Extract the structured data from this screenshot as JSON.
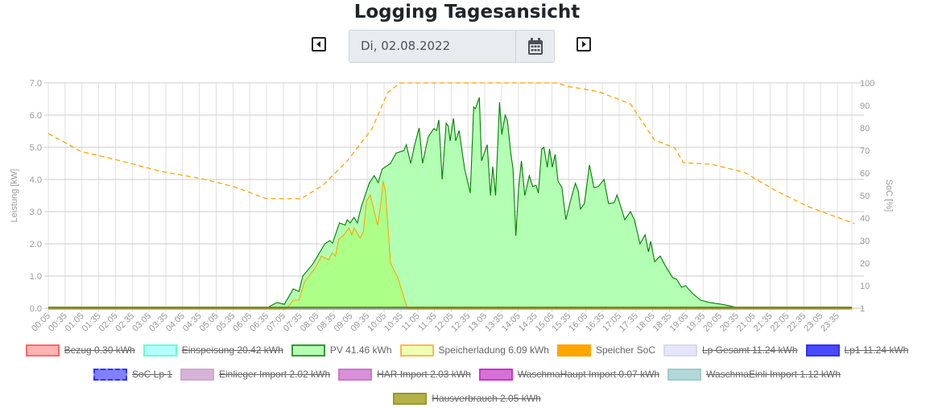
{
  "header": {
    "title": "Logging Tagesansicht",
    "date": "Di, 02.08.2022",
    "prev_icon": "caret-left-square-icon",
    "next_icon": "caret-right-square-icon",
    "calendar_icon": "calendar-icon"
  },
  "chart_data": {
    "type": "area",
    "xlabel": "",
    "ylabel": "Leistung [kW]",
    "y2label": "SoC [%]",
    "ylim": [
      0,
      7
    ],
    "y2lim": [
      0,
      100
    ],
    "yticks": [
      "0.0",
      "1.0",
      "2.0",
      "3.0",
      "4.0",
      "5.0",
      "6.0",
      "7.0"
    ],
    "y2ticks": [
      "1",
      "10",
      "20",
      "30",
      "40",
      "50",
      "60",
      "70",
      "80",
      "90",
      "100"
    ],
    "xticks": [
      "00:05",
      "00:35",
      "01:05",
      "01:35",
      "02:05",
      "02:35",
      "03:05",
      "03:35",
      "04:05",
      "04:35",
      "05:05",
      "05:35",
      "06:05",
      "06:35",
      "07:05",
      "07:35",
      "08:05",
      "08:35",
      "09:05",
      "09:35",
      "10:05",
      "10:35",
      "11:05",
      "11:35",
      "12:05",
      "12:35",
      "13:05",
      "13:35",
      "14:05",
      "14:35",
      "15:05",
      "15:35",
      "16:05",
      "16:35",
      "17:05",
      "17:35",
      "18:05",
      "18:35",
      "19:05",
      "19:35",
      "20:05",
      "20:35",
      "21:05",
      "21:35",
      "22:05",
      "22:35",
      "23:05",
      "23:35"
    ],
    "x_unit": "minutes since midnight",
    "series": [
      {
        "name": "PV",
        "axis": "left",
        "color": "#008000",
        "fill": "#b3ffb3",
        "points": [
          [
            5,
            0
          ],
          [
            393,
            0
          ],
          [
            412,
            0.18
          ],
          [
            425,
            0.12
          ],
          [
            441,
            0.6
          ],
          [
            451,
            0.52
          ],
          [
            458,
            1.0
          ],
          [
            476,
            1.38
          ],
          [
            497,
            2.0
          ],
          [
            506,
            2.1
          ],
          [
            511,
            2.02
          ],
          [
            523,
            2.65
          ],
          [
            533,
            2.58
          ],
          [
            537,
            2.75
          ],
          [
            542,
            2.65
          ],
          [
            549,
            2.82
          ],
          [
            555,
            2.65
          ],
          [
            562,
            3.15
          ],
          [
            576,
            3.88
          ],
          [
            585,
            4.12
          ],
          [
            592,
            3.9
          ],
          [
            599,
            4.32
          ],
          [
            614,
            4.5
          ],
          [
            624,
            4.82
          ],
          [
            638,
            4.9
          ],
          [
            642,
            5.08
          ],
          [
            650,
            4.5
          ],
          [
            657,
            5.08
          ],
          [
            665,
            5.6
          ],
          [
            671,
            4.5
          ],
          [
            681,
            5.32
          ],
          [
            691,
            5.58
          ],
          [
            696,
            5.52
          ],
          [
            700,
            5.85
          ],
          [
            706,
            4.0
          ],
          [
            713,
            5.75
          ],
          [
            717,
            5.65
          ],
          [
            720,
            5.2
          ],
          [
            726,
            5.9
          ],
          [
            730,
            5.2
          ],
          [
            736,
            5.52
          ],
          [
            746,
            4.32
          ],
          [
            756,
            3.58
          ],
          [
            762,
            6.25
          ],
          [
            765,
            6.2
          ],
          [
            772,
            6.55
          ],
          [
            776,
            4.58
          ],
          [
            786,
            5.08
          ],
          [
            792,
            3.5
          ],
          [
            796,
            4.4
          ],
          [
            801,
            3.5
          ],
          [
            808,
            6.4
          ],
          [
            812,
            5.4
          ],
          [
            818,
            6.0
          ],
          [
            822,
            5.82
          ],
          [
            828,
            4.82
          ],
          [
            832,
            4.32
          ],
          [
            837,
            2.25
          ],
          [
            842,
            3.75
          ],
          [
            847,
            4.58
          ],
          [
            853,
            3.5
          ],
          [
            861,
            4.12
          ],
          [
            867,
            3.78
          ],
          [
            873,
            3.82
          ],
          [
            877,
            3.58
          ],
          [
            883,
            4.95
          ],
          [
            887,
            5.0
          ],
          [
            893,
            4.38
          ],
          [
            897,
            4.95
          ],
          [
            902,
            4.38
          ],
          [
            907,
            4.78
          ],
          [
            912,
            3.95
          ],
          [
            919,
            3.75
          ],
          [
            926,
            2.75
          ],
          [
            936,
            3.45
          ],
          [
            943,
            3.88
          ],
          [
            948,
            3.65
          ],
          [
            952,
            3.08
          ],
          [
            959,
            3.25
          ],
          [
            968,
            4.45
          ],
          [
            976,
            3.75
          ],
          [
            984,
            3.78
          ],
          [
            994,
            4.0
          ],
          [
            1002,
            3.25
          ],
          [
            1012,
            3.28
          ],
          [
            1017,
            3.52
          ],
          [
            1022,
            3.25
          ],
          [
            1031,
            2.75
          ],
          [
            1041,
            3.0
          ],
          [
            1048,
            2.75
          ],
          [
            1058,
            2.0
          ],
          [
            1067,
            2.28
          ],
          [
            1073,
            1.75
          ],
          [
            1077,
            2.08
          ],
          [
            1084,
            1.45
          ],
          [
            1094,
            1.62
          ],
          [
            1103,
            1.32
          ],
          [
            1116,
            0.95
          ],
          [
            1123,
            0.9
          ],
          [
            1132,
            0.65
          ],
          [
            1139,
            0.7
          ],
          [
            1152,
            0.45
          ],
          [
            1166,
            0.25
          ],
          [
            1181,
            0.18
          ],
          [
            1204,
            0.12
          ],
          [
            1232,
            0.02
          ],
          [
            1257,
            0
          ],
          [
            1440,
            0
          ]
        ]
      },
      {
        "name": "Speicherladung",
        "axis": "left",
        "color": "#ffa500",
        "fill": "rgba(170,255,120,0.75)",
        "points": [
          [
            5,
            0
          ],
          [
            429,
            0
          ],
          [
            441,
            0.25
          ],
          [
            451,
            0.25
          ],
          [
            461,
            0.82
          ],
          [
            480,
            1.25
          ],
          [
            491,
            1.62
          ],
          [
            504,
            1.5
          ],
          [
            510,
            1.72
          ],
          [
            516,
            1.62
          ],
          [
            522,
            2.15
          ],
          [
            530,
            2.25
          ],
          [
            540,
            2.5
          ],
          [
            545,
            2.28
          ],
          [
            549,
            2.5
          ],
          [
            560,
            2.18
          ],
          [
            566,
            2.4
          ],
          [
            571,
            3.32
          ],
          [
            578,
            3.52
          ],
          [
            583,
            3.15
          ],
          [
            591,
            2.58
          ],
          [
            596,
            3.15
          ],
          [
            601,
            3.95
          ],
          [
            605,
            3.65
          ],
          [
            614,
            1.4
          ],
          [
            627,
            0.95
          ],
          [
            638,
            0.32
          ],
          [
            644,
            0
          ],
          [
            1440,
            0
          ]
        ]
      },
      {
        "name": "Speicher SoC",
        "axis": "right",
        "color": "#ffa500",
        "dashed": true,
        "points": [
          [
            5,
            77.5
          ],
          [
            63,
            69.6
          ],
          [
            134,
            65.4
          ],
          [
            206,
            60.7
          ],
          [
            278,
            57.5
          ],
          [
            336,
            53.9
          ],
          [
            393,
            48.6
          ],
          [
            455,
            48.6
          ],
          [
            494,
            54.6
          ],
          [
            537,
            65.4
          ],
          [
            581,
            79.6
          ],
          [
            609,
            95.7
          ],
          [
            631,
            100
          ],
          [
            912,
            100
          ],
          [
            926,
            98.6
          ],
          [
            984,
            96.1
          ],
          [
            1041,
            90.7
          ],
          [
            1055,
            85.4
          ],
          [
            1084,
            74.6
          ],
          [
            1120,
            71.1
          ],
          [
            1135,
            64.6
          ],
          [
            1185,
            63.9
          ],
          [
            1243,
            60.4
          ],
          [
            1300,
            52.1
          ],
          [
            1358,
            45
          ],
          [
            1440,
            37.5
          ]
        ]
      }
    ],
    "legend": [
      {
        "label": "Bezug 0.30 kWh",
        "fill": "#ffb3b3",
        "border": "#ff6666",
        "hidden": true
      },
      {
        "label": "Einspeisung 20.42 kWh",
        "fill": "#b3ffff",
        "border": "#66ffcc",
        "hidden": true
      },
      {
        "label": "PV 41.46 kWh",
        "fill": "#b3ffb3",
        "border": "#339933",
        "hidden": false
      },
      {
        "label": "Speicherladung 6.09 kWh",
        "fill": "#f0ffb3",
        "border": "#ffb84d",
        "hidden": false
      },
      {
        "label": "Speicher SoC",
        "fill": "#ffa500",
        "border": "#ffa500",
        "hidden": false,
        "dashed": true
      },
      {
        "label": "Lp Gesamt 11.24 kWh",
        "fill": "#e6e6fa",
        "border": "#d8d8ee",
        "hidden": true
      },
      {
        "label": "Lp1 11.24 kWh",
        "fill": "#4a4aff",
        "border": "#3333ee",
        "hidden": true
      },
      {
        "label": "SoC Lp 1",
        "fill": "#8080ff",
        "border": "#3333ff",
        "hidden": true,
        "dashed": true,
        "break_before": true
      },
      {
        "label": "Einlieger Import 2.02 kWh",
        "fill": "#d8b3d8",
        "border": "#d0a8d0",
        "hidden": true
      },
      {
        "label": "HAR Import 2.03 kWh",
        "fill": "#d890d8",
        "border": "#cc77cc",
        "hidden": true
      },
      {
        "label": "WaschmaHaupt Import 0.07 kWh",
        "fill": "#d870d8",
        "border": "#cc33cc",
        "hidden": true
      },
      {
        "label": "WaschmaEinli Import 1.12 kWh",
        "fill": "#b3d8d8",
        "border": "#a0cccc",
        "hidden": true
      },
      {
        "label": "Hausverbrauch 2.05 kWh",
        "fill": "#b3b347",
        "border": "#999933",
        "hidden": true,
        "break_before": true
      }
    ]
  }
}
